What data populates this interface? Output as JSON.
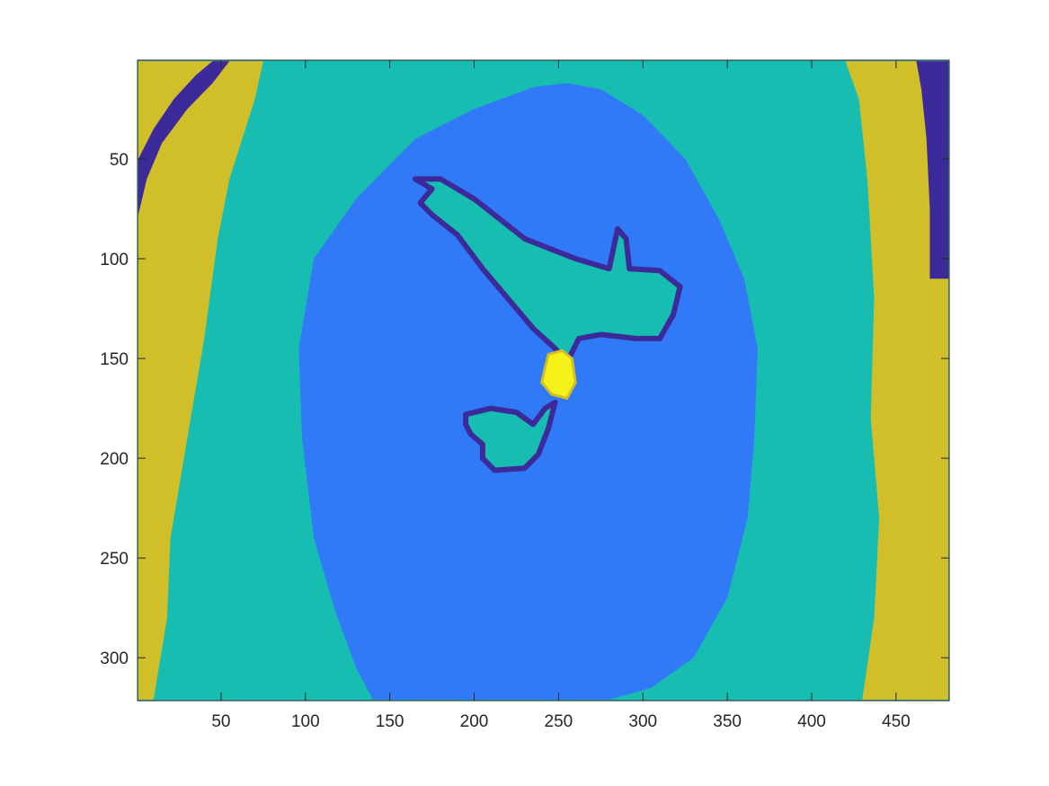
{
  "chart_data": {
    "type": "heatmap",
    "title": "",
    "xlabel": "",
    "ylabel": "",
    "xlim": [
      0.5,
      481.5
    ],
    "ylim": [
      0.5,
      321.5
    ],
    "y_direction": "reversed",
    "grid": false,
    "legend": "none",
    "colorbar": false,
    "x_ticks": [
      50,
      100,
      150,
      200,
      250,
      300,
      350,
      400,
      450
    ],
    "y_ticks": [
      50,
      100,
      150,
      200,
      250,
      300
    ],
    "x_tick_labels": [
      "50",
      "100",
      "150",
      "200",
      "250",
      "300",
      "350",
      "400",
      "450"
    ],
    "y_tick_labels": [
      "50",
      "100",
      "150",
      "200",
      "250",
      "300"
    ],
    "colors": {
      "class_1": "#3d2a9a",
      "class_2": "#317af7",
      "class_3": "#18bdb1",
      "class_4": "#d1bf2a",
      "class_5": "#f5f21a"
    },
    "regions": [
      {
        "class": "class_4",
        "area": "left edge band",
        "points": [
          [
            1,
            1
          ],
          [
            75,
            1
          ],
          [
            70,
            20
          ],
          [
            55,
            60
          ],
          [
            48,
            90
          ],
          [
            40,
            140
          ],
          [
            30,
            190
          ],
          [
            20,
            240
          ],
          [
            18,
            280
          ],
          [
            10,
            321
          ],
          [
            1,
            321
          ]
        ]
      },
      {
        "class": "class_1",
        "area": "top-left stripe",
        "points": [
          [
            1,
            50
          ],
          [
            10,
            35
          ],
          [
            22,
            20
          ],
          [
            35,
            8
          ],
          [
            45,
            1
          ],
          [
            55,
            1
          ],
          [
            45,
            12
          ],
          [
            30,
            25
          ],
          [
            15,
            42
          ],
          [
            6,
            60
          ],
          [
            1,
            78
          ]
        ]
      },
      {
        "class": "class_4",
        "area": "right edge band",
        "points": [
          [
            420,
            1
          ],
          [
            481,
            1
          ],
          [
            481,
            321
          ],
          [
            430,
            321
          ],
          [
            437,
            280
          ],
          [
            440,
            230
          ],
          [
            435,
            180
          ],
          [
            437,
            120
          ],
          [
            433,
            60
          ],
          [
            428,
            20
          ]
        ]
      },
      {
        "class": "class_1",
        "area": "top-right stripe",
        "points": [
          [
            462,
            1
          ],
          [
            481,
            1
          ],
          [
            481,
            110
          ],
          [
            470,
            110
          ],
          [
            470,
            75
          ],
          [
            468,
            40
          ],
          [
            465,
            15
          ]
        ]
      },
      {
        "class": "class_2",
        "area": "central region",
        "points": [
          [
            255,
            12
          ],
          [
            275,
            15
          ],
          [
            300,
            28
          ],
          [
            325,
            50
          ],
          [
            345,
            80
          ],
          [
            360,
            110
          ],
          [
            368,
            145
          ],
          [
            366,
            190
          ],
          [
            362,
            230
          ],
          [
            350,
            270
          ],
          [
            330,
            300
          ],
          [
            305,
            315
          ],
          [
            280,
            321
          ],
          [
            140,
            321
          ],
          [
            130,
            305
          ],
          [
            117,
            275
          ],
          [
            105,
            240
          ],
          [
            98,
            190
          ],
          [
            96,
            145
          ],
          [
            105,
            100
          ],
          [
            130,
            70
          ],
          [
            165,
            40
          ],
          [
            200,
            25
          ],
          [
            235,
            14
          ]
        ]
      },
      {
        "class": "class_3",
        "area": "upper island",
        "points": [
          [
            165,
            60
          ],
          [
            180,
            60
          ],
          [
            200,
            70
          ],
          [
            230,
            90
          ],
          [
            260,
            100
          ],
          [
            280,
            105
          ],
          [
            285,
            85
          ],
          [
            290,
            90
          ],
          [
            292,
            105
          ],
          [
            310,
            106
          ],
          [
            322,
            114
          ],
          [
            318,
            128
          ],
          [
            310,
            140
          ],
          [
            296,
            140
          ],
          [
            275,
            138
          ],
          [
            262,
            140
          ],
          [
            255,
            152
          ],
          [
            248,
            145
          ],
          [
            235,
            135
          ],
          [
            220,
            120
          ],
          [
            205,
            105
          ],
          [
            190,
            88
          ],
          [
            175,
            78
          ],
          [
            168,
            72
          ],
          [
            175,
            65
          ]
        ]
      },
      {
        "class": "class_3",
        "area": "lower island",
        "points": [
          [
            195,
            178
          ],
          [
            210,
            175
          ],
          [
            225,
            177
          ],
          [
            235,
            183
          ],
          [
            242,
            175
          ],
          [
            248,
            172
          ],
          [
            244,
            185
          ],
          [
            238,
            198
          ],
          [
            230,
            205
          ],
          [
            212,
            206
          ],
          [
            205,
            200
          ],
          [
            205,
            193
          ],
          [
            198,
            188
          ],
          [
            195,
            183
          ]
        ]
      },
      {
        "class": "class_5",
        "area": "center spot",
        "points": [
          [
            244,
            148
          ],
          [
            252,
            146
          ],
          [
            258,
            150
          ],
          [
            260,
            162
          ],
          [
            255,
            170
          ],
          [
            246,
            168
          ],
          [
            240,
            162
          ]
        ]
      }
    ]
  }
}
